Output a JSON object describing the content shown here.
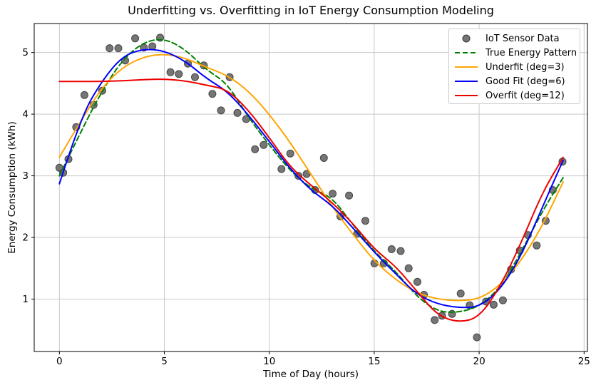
{
  "chart_data": {
    "type": "scatter",
    "title": "Underfitting vs. Overfitting in IoT Energy Consumption Modeling",
    "xlabel": "Time of Day (hours)",
    "ylabel": "Energy Consumption (kWh)",
    "xlim": [
      -1.2,
      25.16
    ],
    "ylim": [
      0.15,
      5.47
    ],
    "x_ticks": [
      0,
      5,
      10,
      15,
      20,
      25
    ],
    "y_ticks": [
      1,
      2,
      3,
      4,
      5
    ],
    "grid": true,
    "grid_color": "#c9c9c9",
    "spine_color": "#000000",
    "scatter": {
      "name": "IoT Sensor Data",
      "color": "#5e5e5e",
      "edge_color": "#3a3a3a",
      "points": [
        [
          0.0,
          3.13
        ],
        [
          0.18,
          3.05
        ],
        [
          0.43,
          3.27
        ],
        [
          0.8,
          3.79
        ],
        [
          1.19,
          4.31
        ],
        [
          1.63,
          4.15
        ],
        [
          2.04,
          4.38
        ],
        [
          2.39,
          5.07
        ],
        [
          2.81,
          5.07
        ],
        [
          3.13,
          4.87
        ],
        [
          3.61,
          5.23
        ],
        [
          4.02,
          5.08
        ],
        [
          4.43,
          5.1
        ],
        [
          4.8,
          5.24
        ],
        [
          5.29,
          4.68
        ],
        [
          5.69,
          4.65
        ],
        [
          6.12,
          4.82
        ],
        [
          6.46,
          4.6
        ],
        [
          6.88,
          4.79
        ],
        [
          7.29,
          4.33
        ],
        [
          7.7,
          4.06
        ],
        [
          8.11,
          4.6
        ],
        [
          8.48,
          4.02
        ],
        [
          8.9,
          3.92
        ],
        [
          9.32,
          3.43
        ],
        [
          9.73,
          3.5
        ],
        [
          10.58,
          3.11
        ],
        [
          11.0,
          3.36
        ],
        [
          11.39,
          3.0
        ],
        [
          11.78,
          3.03
        ],
        [
          12.18,
          2.77
        ],
        [
          12.6,
          3.29
        ],
        [
          13.02,
          2.71
        ],
        [
          13.39,
          2.34
        ],
        [
          13.8,
          2.68
        ],
        [
          14.19,
          2.06
        ],
        [
          14.58,
          2.27
        ],
        [
          15.01,
          1.58
        ],
        [
          15.46,
          1.58
        ],
        [
          15.83,
          1.81
        ],
        [
          16.26,
          1.78
        ],
        [
          16.64,
          1.5
        ],
        [
          17.06,
          1.28
        ],
        [
          17.37,
          1.07
        ],
        [
          17.88,
          0.66
        ],
        [
          18.23,
          0.73
        ],
        [
          18.71,
          0.76
        ],
        [
          19.12,
          1.09
        ],
        [
          19.55,
          0.9
        ],
        [
          19.89,
          0.38
        ],
        [
          20.33,
          0.96
        ],
        [
          20.69,
          0.91
        ],
        [
          21.13,
          0.98
        ],
        [
          21.52,
          1.48
        ],
        [
          21.94,
          1.79
        ],
        [
          22.32,
          2.04
        ],
        [
          22.74,
          1.87
        ],
        [
          23.17,
          2.27
        ],
        [
          23.51,
          2.77
        ],
        [
          23.97,
          3.23
        ]
      ]
    },
    "curve_x": [
      0,
      1,
      2,
      3,
      4,
      5,
      6,
      7,
      8,
      9,
      10,
      11,
      12,
      13,
      14,
      15,
      16,
      17,
      18,
      19,
      20,
      21,
      22,
      23,
      24
    ],
    "series": [
      {
        "name": "True Energy Pattern",
        "color": "#008000",
        "dash": "7 4",
        "width": 2,
        "y": [
          3.0,
          3.7,
          4.36,
          4.88,
          5.17,
          5.23,
          5.05,
          4.72,
          4.5,
          3.95,
          3.5,
          3.08,
          2.79,
          2.65,
          2.2,
          1.77,
          1.46,
          1.05,
          0.8,
          0.78,
          0.88,
          1.18,
          1.76,
          2.42,
          2.97
        ]
      },
      {
        "name": "Underfit (deg=3)",
        "color": "#ffa500",
        "dash": null,
        "width": 2,
        "y": [
          3.3,
          3.88,
          4.42,
          4.76,
          4.93,
          4.98,
          4.91,
          4.76,
          4.63,
          4.38,
          4.0,
          3.54,
          3.02,
          2.5,
          2.04,
          1.62,
          1.32,
          1.1,
          1.0,
          0.97,
          1.0,
          1.22,
          1.62,
          2.18,
          2.9
        ]
      },
      {
        "name": "Good Fit (deg=6)",
        "color": "#0000ff",
        "dash": null,
        "width": 2,
        "y": [
          2.87,
          3.93,
          4.53,
          4.94,
          5.06,
          5.03,
          4.86,
          4.58,
          4.37,
          3.99,
          3.56,
          3.11,
          2.76,
          2.52,
          2.15,
          1.76,
          1.42,
          1.08,
          0.92,
          0.86,
          0.87,
          1.15,
          1.7,
          2.48,
          3.25
        ]
      },
      {
        "name": "Overfit (deg=12)",
        "color": "#ee0000",
        "dash": null,
        "width": 2,
        "y": [
          4.53,
          4.53,
          4.53,
          4.54,
          4.56,
          4.57,
          4.54,
          4.47,
          4.4,
          4.07,
          3.62,
          3.14,
          2.84,
          2.57,
          2.22,
          1.81,
          1.54,
          1.14,
          0.74,
          0.62,
          0.7,
          1.2,
          1.91,
          2.72,
          3.3
        ]
      }
    ]
  },
  "legend": {
    "items": [
      {
        "label": "IoT Sensor Data",
        "symbol": "dot",
        "color": "#5e5e5e"
      },
      {
        "label": "True Energy Pattern",
        "symbol": "dashed",
        "color": "#008000"
      },
      {
        "label": "Underfit (deg=3)",
        "symbol": "line",
        "color": "#ffa500"
      },
      {
        "label": "Good Fit (deg=6)",
        "symbol": "line",
        "color": "#0000ff"
      },
      {
        "label": "Overfit (deg=12)",
        "symbol": "line",
        "color": "#ee0000"
      }
    ]
  }
}
